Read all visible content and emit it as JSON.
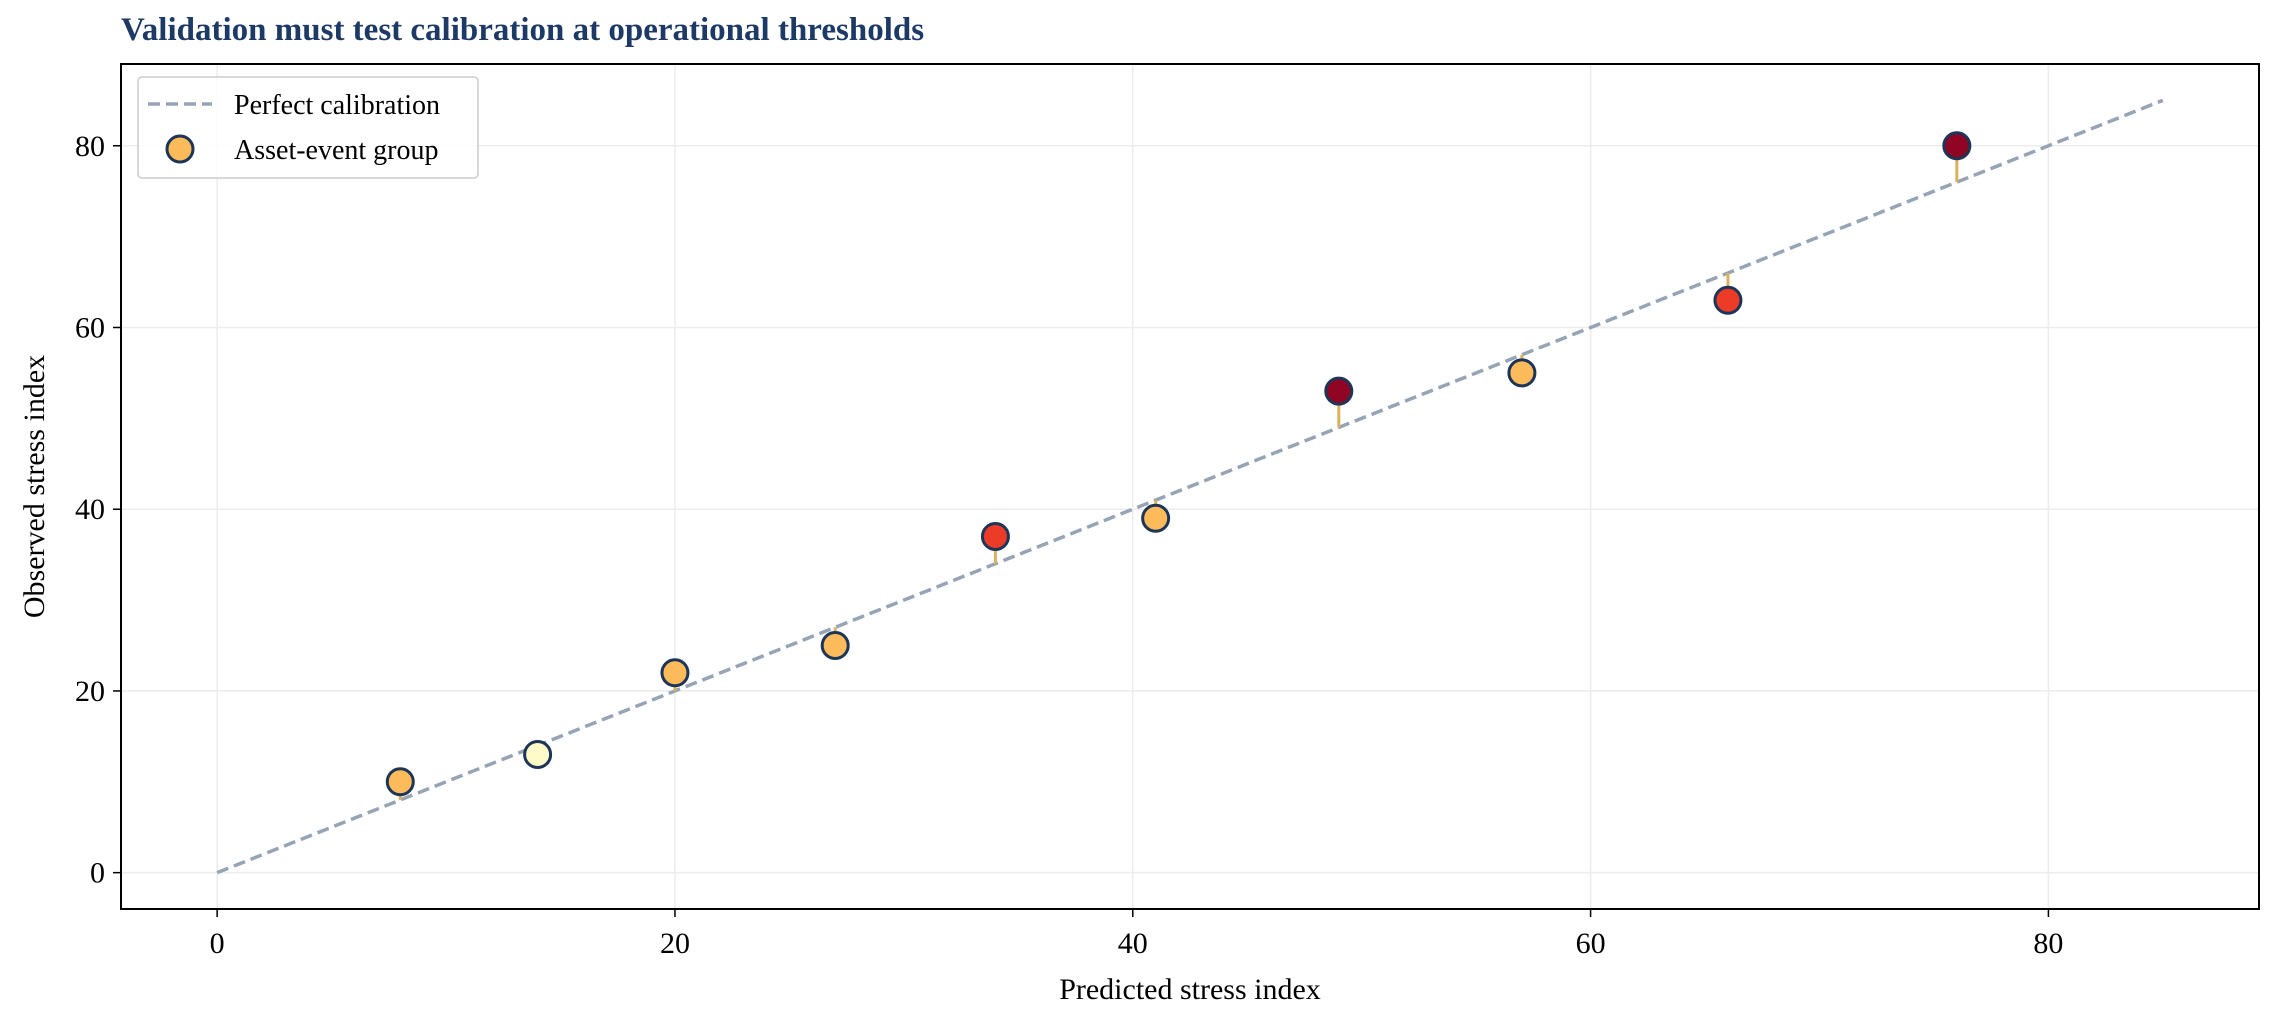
{
  "chart_data": {
    "type": "scatter",
    "title": "Validation must test calibration at operational thresholds",
    "xlabel": "Predicted stress index",
    "ylabel": "Observed stress index",
    "xlim": [
      -4.2,
      89.2
    ],
    "ylim": [
      -4,
      89
    ],
    "xticks": [
      0,
      20,
      40,
      60,
      80
    ],
    "yticks": [
      0,
      20,
      40,
      60,
      80
    ],
    "grid": true,
    "legend_position": "top-left",
    "legend": [
      "Perfect calibration",
      "Asset-event group"
    ],
    "reference_line": {
      "name": "Perfect calibration",
      "x": [
        0,
        85
      ],
      "y": [
        0,
        85
      ],
      "color": "#96a4b5",
      "style": "dashed"
    },
    "series": [
      {
        "name": "Asset-event group",
        "points": [
          {
            "x": 8,
            "y": 10,
            "color": "#fdbb5c"
          },
          {
            "x": 14,
            "y": 13,
            "color": "#fffac8"
          },
          {
            "x": 20,
            "y": 22,
            "color": "#fdbb5c"
          },
          {
            "x": 27,
            "y": 25,
            "color": "#fdbb5c"
          },
          {
            "x": 34,
            "y": 37,
            "color": "#ec3b27"
          },
          {
            "x": 41,
            "y": 39,
            "color": "#fdbb5c"
          },
          {
            "x": 49,
            "y": 53,
            "color": "#900523"
          },
          {
            "x": 57,
            "y": 55,
            "color": "#fdbb5c"
          },
          {
            "x": 66,
            "y": 63,
            "color": "#ec3b27"
          },
          {
            "x": 76,
            "y": 80,
            "color": "#900523"
          }
        ]
      }
    ],
    "colors": {
      "title": "#1d3a66",
      "marker_edge": "#1d3557",
      "residual": "#d9b25a",
      "grid": "#ececec"
    }
  }
}
